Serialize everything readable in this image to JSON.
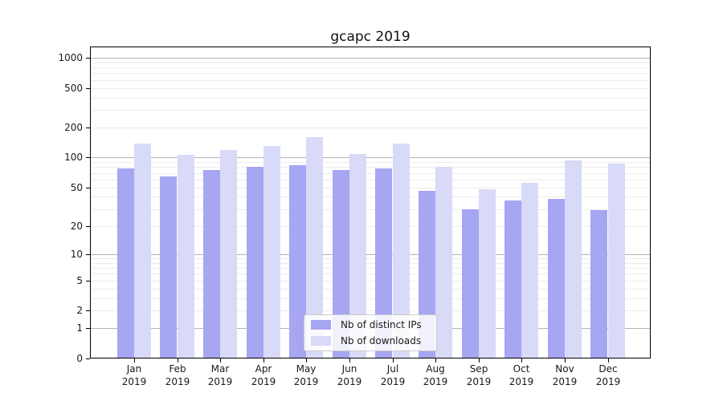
{
  "title": "gcapc 2019",
  "axes": {
    "y_tick_labels": [
      "1000",
      "500",
      "200",
      "100",
      "50",
      "20",
      "10",
      "5",
      "2",
      "1",
      "0"
    ],
    "y_tick_values": [
      1000,
      500,
      200,
      100,
      50,
      20,
      10,
      5,
      2,
      1,
      0
    ],
    "months": [
      "Jan",
      "Feb",
      "Mar",
      "Apr",
      "May",
      "Jun",
      "Jul",
      "Aug",
      "Sep",
      "Oct",
      "Nov",
      "Dec"
    ],
    "year": "2019"
  },
  "legend": {
    "items": [
      "Nb of distinct IPs",
      "Nb of downloads"
    ]
  },
  "chart_data": {
    "type": "bar",
    "title": "gcapc 2019",
    "categories": [
      "Jan 2019",
      "Feb 2019",
      "Mar 2019",
      "Apr 2019",
      "May 2019",
      "Jun 2019",
      "Jul 2019",
      "Aug 2019",
      "Sep 2019",
      "Oct 2019",
      "Nov 2019",
      "Dec 2019"
    ],
    "series": [
      {
        "name": "Nb of distinct IPs",
        "color": "#a6a6f2",
        "values": [
          77,
          64,
          75,
          80,
          84,
          75,
          78,
          46,
          30,
          37,
          38,
          29
        ]
      },
      {
        "name": "Nb of downloads",
        "color": "#d9d9f8",
        "values": [
          139,
          107,
          120,
          131,
          160,
          109,
          138,
          80,
          48,
          55,
          93,
          87
        ]
      }
    ],
    "xlabel": "",
    "ylabel": "",
    "yscale": "log10(value+1)",
    "ylim": [
      0,
      1000
    ],
    "yticks": [
      0,
      1,
      2,
      5,
      10,
      20,
      50,
      100,
      200,
      500,
      1000
    ],
    "grid": true,
    "grid_minor_values": [
      2,
      3,
      4,
      5,
      6,
      7,
      8,
      9,
      20,
      30,
      40,
      50,
      60,
      70,
      80,
      90,
      200,
      300,
      400,
      500,
      600,
      700,
      800,
      900
    ],
    "grid_major_values": [
      1,
      10,
      100,
      1000
    ],
    "legend_position": "lower center inside"
  }
}
